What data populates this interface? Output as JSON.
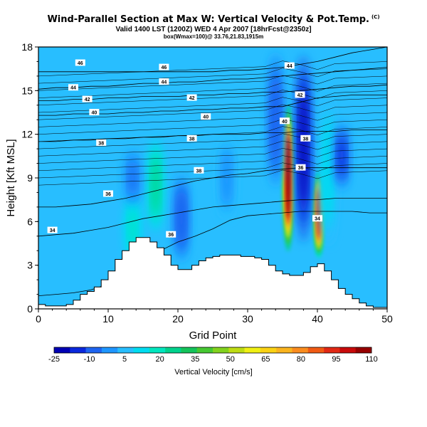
{
  "header": {
    "title": "Wind-Parallel Section at Max W: Vertical Velocity & Pot.Temp.",
    "title_mark": "(C)",
    "line2": "Valid 1400 LST (1200Z) WED 4 Apr 2007 [18hrFcst@2350z]",
    "line3": "box(Wmax=100)@ 33.76,21.83,1915m"
  },
  "chart_data": {
    "type": "heatmap",
    "xlabel": "Grid Point",
    "ylabel": "Height [Kft MSL]",
    "xlim": [
      0,
      50
    ],
    "ylim": [
      0,
      18
    ],
    "xticks": [
      0,
      10,
      20,
      30,
      40,
      50
    ],
    "yticks": [
      0,
      3,
      6,
      9,
      12,
      15,
      18
    ],
    "grid": false,
    "terrain": {
      "x": [
        0,
        1,
        2,
        3,
        4,
        5,
        6,
        7,
        8,
        9,
        10,
        11,
        12,
        13,
        14,
        15,
        16,
        17,
        18,
        19,
        20,
        21,
        22,
        23,
        24,
        25,
        26,
        27,
        28,
        29,
        30,
        31,
        32,
        33,
        34,
        35,
        36,
        37,
        38,
        39,
        40,
        41,
        42,
        43,
        44,
        45,
        46,
        47,
        48,
        49,
        50
      ],
      "height": [
        0.3,
        0.2,
        0.2,
        0.2,
        0.3,
        0.6,
        1.0,
        1.2,
        1.5,
        2.0,
        2.6,
        3.4,
        4.0,
        4.6,
        4.9,
        4.9,
        4.6,
        4.2,
        3.7,
        3.0,
        2.7,
        2.7,
        3.0,
        3.3,
        3.5,
        3.6,
        3.7,
        3.7,
        3.7,
        3.6,
        3.6,
        3.5,
        3.4,
        3.0,
        2.6,
        2.4,
        2.3,
        2.3,
        2.5,
        2.9,
        3.1,
        2.6,
        2.0,
        1.4,
        1.0,
        0.7,
        0.4,
        0.2,
        0.1,
        0.1,
        0.0
      ]
    },
    "vertical_velocity_features": [
      {
        "x": 35.8,
        "y_range": [
          4.0,
          14.0
        ],
        "peak": 110
      },
      {
        "x": 40.2,
        "y_range": [
          3.5,
          9.5
        ],
        "peak": 95
      },
      {
        "x": 16.8,
        "y_range": [
          5.0,
          12.0
        ],
        "peak": 25
      },
      {
        "x": 41.5,
        "y_range": [
          4.0,
          15.0
        ],
        "peak": 15
      },
      {
        "x": 13.5,
        "y_range": [
          3.0,
          8.0
        ],
        "peak": 18
      },
      {
        "x": 38.0,
        "y_range": [
          4.0,
          18.0
        ],
        "peak": -25
      },
      {
        "x": 34.0,
        "y_range": [
          8.0,
          18.0
        ],
        "peak": -10
      },
      {
        "x": 20.5,
        "y_range": [
          3.0,
          9.5
        ],
        "peak": -10
      },
      {
        "x": 13.5,
        "y_range": [
          7.0,
          11.0
        ],
        "peak": -5
      },
      {
        "x": 43.5,
        "y_range": [
          8.0,
          13.0
        ],
        "peak": -15
      },
      {
        "x": 27.0,
        "y_range": [
          6.0,
          12.0
        ],
        "peak": -2
      }
    ],
    "theta_contours": [
      {
        "level": 32,
        "y": [
          0.9,
          1.0,
          1.1,
          1.3,
          1.7,
          2.3,
          3.1,
          4.0,
          4.6,
          5.0,
          5.5,
          6.1,
          6.4,
          6.5,
          6.6,
          6.7,
          6.7,
          6.7,
          6.7,
          6.6,
          6.6
        ]
      },
      {
        "level": 34,
        "y": [
          5.0,
          5.1,
          5.2,
          5.4,
          5.6,
          5.9,
          6.2,
          6.4,
          6.6,
          6.8,
          7.0,
          7.1,
          7.2,
          7.3,
          7.4,
          7.5,
          7.5,
          7.6,
          7.6,
          7.6,
          7.6
        ]
      },
      {
        "level": 36,
        "y": [
          7.0,
          7.0,
          7.1,
          7.2,
          7.4,
          7.6,
          7.9,
          8.2,
          8.5,
          8.8,
          9.0,
          9.2,
          9.3,
          9.5,
          9.6,
          9.7,
          9.7,
          9.7,
          9.7,
          9.7,
          9.7
        ]
      },
      {
        "level": 38,
        "y": [
          11.5,
          11.5,
          11.6,
          11.6,
          11.7,
          11.7,
          11.8,
          11.8,
          11.9,
          11.9,
          12.0,
          12.0,
          12.0,
          12.1,
          12.1,
          12.2,
          12.2,
          12.2,
          12.3,
          12.3,
          12.3
        ]
      },
      {
        "level": 40,
        "y": [
          13.3,
          13.3,
          13.4,
          13.4,
          13.4,
          13.5,
          13.5,
          13.6,
          13.6,
          13.7,
          13.7,
          13.8,
          13.8,
          13.9,
          13.9,
          14.2,
          14.5,
          14.6,
          14.7,
          14.7,
          14.7
        ]
      },
      {
        "level": 42,
        "y": [
          14.3,
          14.3,
          14.4,
          14.4,
          14.5,
          14.5,
          14.6,
          14.6,
          14.6,
          14.7,
          14.7,
          14.8,
          14.8,
          14.9,
          14.9,
          15.0,
          15.1,
          15.2,
          15.3,
          15.3,
          15.4
        ]
      },
      {
        "level": 44,
        "y": [
          15.1,
          15.2,
          15.2,
          15.3,
          15.3,
          15.4,
          15.5,
          15.5,
          15.6,
          15.6,
          15.7,
          15.8,
          15.8,
          15.9,
          16.0,
          16.1,
          16.2,
          16.3,
          16.4,
          16.5,
          16.6
        ]
      },
      {
        "level": 46,
        "y": [
          16.3,
          16.3,
          16.3,
          16.3,
          16.3,
          16.3,
          16.3,
          16.3,
          16.3,
          16.3,
          16.3,
          16.4,
          16.4,
          16.5,
          16.6,
          16.8,
          17.0,
          17.3,
          17.6,
          17.8,
          18.0
        ]
      }
    ],
    "contour_labels": [
      {
        "text": "46",
        "x": 6,
        "y": 16.9
      },
      {
        "text": "46",
        "x": 18,
        "y": 16.6
      },
      {
        "text": "44",
        "x": 36,
        "y": 16.7
      },
      {
        "text": "44",
        "x": 5,
        "y": 15.2
      },
      {
        "text": "44",
        "x": 18,
        "y": 15.6
      },
      {
        "text": "42",
        "x": 7,
        "y": 14.4
      },
      {
        "text": "42",
        "x": 22,
        "y": 14.5
      },
      {
        "text": "42",
        "x": 37.5,
        "y": 14.7
      },
      {
        "text": "40",
        "x": 8,
        "y": 13.5
      },
      {
        "text": "40",
        "x": 24,
        "y": 13.2
      },
      {
        "text": "40",
        "x": 35.3,
        "y": 12.9
      },
      {
        "text": "38",
        "x": 9,
        "y": 11.4
      },
      {
        "text": "38",
        "x": 22,
        "y": 11.7
      },
      {
        "text": "38",
        "x": 38.3,
        "y": 11.7
      },
      {
        "text": "38",
        "x": 23,
        "y": 9.5
      },
      {
        "text": "36",
        "x": 37.6,
        "y": 9.7
      },
      {
        "text": "36",
        "x": 10,
        "y": 7.9
      },
      {
        "text": "36",
        "x": 19,
        "y": 5.1
      },
      {
        "text": "34",
        "x": 2,
        "y": 5.4
      },
      {
        "text": "34",
        "x": 40,
        "y": 6.2
      }
    ],
    "colorbar": {
      "label": "Vertical Velocity [cm/s]",
      "ticks": [
        "-25",
        "-10",
        "5",
        "20",
        "35",
        "50",
        "65",
        "80",
        "95",
        "110"
      ],
      "min": -25,
      "max": 110,
      "colors": [
        "#0000b4",
        "#0a28dc",
        "#1e64f0",
        "#1e96ff",
        "#28beff",
        "#00dcf0",
        "#00e6be",
        "#00d28c",
        "#14c35a",
        "#46c832",
        "#82d21e",
        "#bedc14",
        "#f0f014",
        "#fad214",
        "#fab41e",
        "#fa8c1e",
        "#f05a14",
        "#e12814",
        "#c80a0a",
        "#960000"
      ]
    }
  }
}
